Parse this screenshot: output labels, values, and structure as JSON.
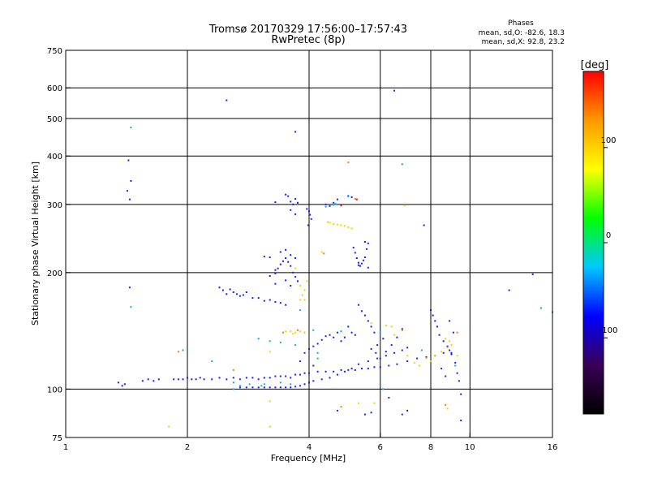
{
  "chart_data": {
    "type": "scatter",
    "title": "Tromsø 20170329 17:56:00–17:57:43",
    "subtitle": "RwPretec (8p)",
    "xlabel": "Frequency [MHz]",
    "ylabel": "Stationary phase Virtual Height [km]",
    "x_scale": "log",
    "y_scale": "log",
    "xlim": [
      1,
      16
    ],
    "ylim": [
      75,
      750
    ],
    "x_ticks": [
      1,
      2,
      4,
      6,
      8,
      10,
      16
    ],
    "y_ticks": [
      75,
      100,
      200,
      300,
      400,
      500,
      600,
      750
    ],
    "x_grid": [
      2,
      4,
      6,
      8,
      10
    ],
    "y_grid": [
      100,
      200,
      300,
      400,
      500,
      600
    ],
    "stats": {
      "heading": "Phases",
      "line1": "mean, sd,O: -82.6, 18.3",
      "line2": "mean, sd,X:  92.8, 23.2"
    },
    "colorbar": {
      "label": "[deg]",
      "range": [
        -180,
        180
      ],
      "ticks": [
        {
          "value": 100,
          "label": "100"
        },
        {
          "value": 0,
          "label": "0"
        },
        {
          "value": -100,
          "label": "-100"
        }
      ],
      "stops": [
        "#000000",
        "#3a0055",
        "#0000ff",
        "#00c8ff",
        "#00ff00",
        "#ffff00",
        "#ff9900",
        "#ff0000"
      ]
    },
    "series": [
      {
        "color": "#1a1aff",
        "points": [
          [
            1.85,
            106
          ],
          [
            1.9,
            106
          ],
          [
            1.95,
            106
          ],
          [
            2.0,
            107
          ],
          [
            2.05,
            106
          ],
          [
            2.1,
            106
          ],
          [
            2.15,
            107
          ],
          [
            2.2,
            106
          ],
          [
            2.3,
            106
          ],
          [
            2.4,
            107
          ],
          [
            2.5,
            106
          ],
          [
            2.6,
            107
          ],
          [
            2.7,
            106
          ],
          [
            2.8,
            107
          ],
          [
            2.9,
            107
          ],
          [
            3.0,
            106
          ],
          [
            3.1,
            107
          ],
          [
            3.2,
            107
          ],
          [
            3.3,
            108
          ],
          [
            3.4,
            108
          ],
          [
            3.5,
            108
          ],
          [
            3.6,
            107
          ],
          [
            3.7,
            109
          ],
          [
            3.8,
            109
          ],
          [
            3.9,
            110
          ],
          [
            4.0,
            110
          ],
          [
            4.2,
            111
          ],
          [
            4.4,
            111
          ],
          [
            4.6,
            111
          ],
          [
            4.8,
            112
          ],
          [
            5.0,
            112
          ],
          [
            5.2,
            112
          ],
          [
            5.4,
            113
          ],
          [
            5.6,
            113
          ],
          [
            5.8,
            114
          ],
          [
            6.0,
            114
          ],
          [
            6.3,
            115
          ],
          [
            6.6,
            116
          ],
          [
            7.0,
            118
          ],
          [
            7.4,
            120
          ],
          [
            7.8,
            121
          ],
          [
            8.2,
            122
          ],
          [
            8.6,
            124
          ],
          [
            9.0,
            124
          ],
          [
            2.7,
            101
          ],
          [
            2.8,
            101
          ],
          [
            2.9,
            101
          ],
          [
            3.0,
            101
          ],
          [
            3.1,
            101
          ],
          [
            3.2,
            101
          ],
          [
            3.3,
            101
          ],
          [
            3.4,
            101
          ],
          [
            3.5,
            101
          ],
          [
            3.6,
            101
          ],
          [
            3.7,
            101.5
          ],
          [
            3.8,
            102
          ],
          [
            3.9,
            103
          ],
          [
            4.0,
            104
          ],
          [
            4.1,
            105
          ],
          [
            4.3,
            106
          ],
          [
            4.5,
            107
          ],
          [
            4.7,
            109
          ],
          [
            4.9,
            111
          ],
          [
            5.1,
            113
          ],
          [
            5.3,
            116
          ],
          [
            5.6,
            118
          ],
          [
            5.9,
            120
          ],
          [
            6.2,
            122
          ],
          [
            6.5,
            124
          ],
          [
            6.8,
            126
          ],
          [
            7.0,
            128
          ],
          [
            3.9,
            124
          ],
          [
            4.0,
            127
          ],
          [
            4.1,
            129
          ],
          [
            4.2,
            131
          ],
          [
            4.3,
            134
          ],
          [
            4.4,
            137
          ],
          [
            4.5,
            138
          ],
          [
            4.6,
            136
          ],
          [
            4.7,
            140
          ],
          [
            4.8,
            133
          ],
          [
            4.9,
            136
          ],
          [
            5.0,
            145
          ],
          [
            5.1,
            140
          ],
          [
            5.2,
            138
          ],
          [
            2.4,
            183
          ],
          [
            2.45,
            180
          ],
          [
            2.5,
            176
          ],
          [
            2.55,
            181
          ],
          [
            2.6,
            178
          ],
          [
            2.65,
            176
          ],
          [
            2.7,
            174
          ],
          [
            2.75,
            175
          ],
          [
            2.8,
            178
          ],
          [
            2.9,
            172
          ],
          [
            3.0,
            172
          ],
          [
            3.1,
            169
          ],
          [
            3.2,
            170
          ],
          [
            3.3,
            168
          ],
          [
            3.4,
            167
          ],
          [
            3.5,
            165
          ],
          [
            3.2,
            196
          ],
          [
            3.3,
            199
          ],
          [
            3.35,
            205
          ],
          [
            3.4,
            210
          ],
          [
            3.45,
            214
          ],
          [
            3.5,
            218
          ],
          [
            3.55,
            213
          ],
          [
            3.6,
            208
          ],
          [
            3.65,
            200
          ],
          [
            3.7,
            195
          ],
          [
            3.75,
            190
          ],
          [
            3.3,
            187
          ],
          [
            3.5,
            191
          ],
          [
            3.6,
            185
          ],
          [
            3.1,
            220
          ],
          [
            3.2,
            219
          ],
          [
            3.3,
            203
          ],
          [
            3.7,
            218
          ],
          [
            3.4,
            226
          ],
          [
            3.5,
            229
          ],
          [
            3.6,
            222
          ],
          [
            3.55,
            315
          ],
          [
            3.6,
            305
          ],
          [
            3.65,
            300
          ],
          [
            3.7,
            310
          ],
          [
            3.75,
            303
          ],
          [
            3.6,
            290
          ],
          [
            3.7,
            283
          ],
          [
            3.5,
            318
          ],
          [
            3.95,
            292
          ],
          [
            4.0,
            288
          ],
          [
            4.02,
            282
          ],
          [
            4.05,
            275
          ],
          [
            3.98,
            265
          ],
          [
            4.4,
            300
          ],
          [
            4.5,
            297
          ],
          [
            4.6,
            303
          ],
          [
            4.7,
            309
          ],
          [
            5.0,
            315
          ],
          [
            5.1,
            313
          ],
          [
            5.15,
            232
          ],
          [
            5.2,
            225
          ],
          [
            5.25,
            218
          ],
          [
            5.3,
            212
          ],
          [
            5.35,
            208
          ],
          [
            5.4,
            211
          ],
          [
            5.45,
            215
          ],
          [
            5.5,
            219
          ],
          [
            5.55,
            230
          ],
          [
            5.5,
            240
          ],
          [
            5.6,
            238
          ],
          [
            5.6,
            206
          ],
          [
            5.3,
            209
          ],
          [
            5.3,
            165
          ],
          [
            5.4,
            159
          ],
          [
            5.5,
            155
          ],
          [
            5.6,
            150
          ],
          [
            5.7,
            145
          ],
          [
            5.8,
            140
          ],
          [
            5.9,
            130
          ],
          [
            5.7,
            127
          ],
          [
            5.85,
            124
          ],
          [
            6.0,
            120
          ],
          [
            6.2,
            125
          ],
          [
            6.4,
            130
          ],
          [
            6.6,
            136
          ],
          [
            6.8,
            143
          ],
          [
            6.1,
            135
          ],
          [
            8.0,
            160
          ],
          [
            8.1,
            155
          ],
          [
            8.2,
            150
          ],
          [
            8.3,
            145
          ],
          [
            8.4,
            138
          ],
          [
            8.6,
            133
          ],
          [
            8.8,
            129
          ],
          [
            8.9,
            126
          ],
          [
            9.0,
            123
          ],
          [
            9.2,
            117
          ],
          [
            9.3,
            110
          ],
          [
            9.4,
            105
          ],
          [
            8.5,
            113
          ],
          [
            8.7,
            108
          ],
          [
            9.1,
            140
          ],
          [
            8.9,
            150
          ],
          [
            1.35,
            104
          ],
          [
            1.38,
            102
          ],
          [
            1.4,
            103
          ],
          [
            1.55,
            105
          ],
          [
            1.6,
            106
          ],
          [
            1.65,
            105
          ],
          [
            1.7,
            106
          ],
          [
            1.43,
            390
          ],
          [
            1.42,
            325
          ],
          [
            1.45,
            345
          ],
          [
            1.44,
            309
          ],
          [
            1.44,
            183
          ],
          [
            2.5,
            557
          ],
          [
            3.7,
            462
          ],
          [
            3.3,
            304
          ],
          [
            4.7,
            88
          ],
          [
            5.5,
            86
          ],
          [
            5.7,
            87
          ],
          [
            6.3,
            95
          ],
          [
            6.8,
            86
          ],
          [
            7.0,
            88
          ],
          [
            9.5,
            83
          ],
          [
            12.5,
            180
          ],
          [
            14.3,
            198
          ],
          [
            7.7,
            265
          ],
          [
            3.8,
            118
          ],
          [
            4.1,
            115
          ],
          [
            6.5,
            590
          ],
          [
            9.5,
            97
          ]
        ]
      },
      {
        "color": "#00aeef",
        "points": [
          [
            1.45,
            474
          ],
          [
            1.45,
            163
          ],
          [
            2.6,
            104
          ],
          [
            2.7,
            102
          ],
          [
            2.85,
            103
          ],
          [
            3.1,
            103
          ],
          [
            3.4,
            104
          ],
          [
            3.6,
            103
          ],
          [
            4.6,
            299
          ],
          [
            4.65,
            301
          ],
          [
            3.0,
            135
          ],
          [
            3.2,
            133
          ],
          [
            3.4,
            132
          ],
          [
            3.7,
            130
          ],
          [
            3.9,
            140
          ],
          [
            4.1,
            142
          ],
          [
            2.3,
            118
          ],
          [
            3.8,
            160
          ],
          [
            4.2,
            124
          ],
          [
            6.0,
            140
          ],
          [
            7.6,
            126
          ],
          [
            15.0,
            162
          ],
          [
            9.2,
            115
          ],
          [
            4.4,
            296
          ],
          [
            5.0,
            316
          ],
          [
            2.6,
            100
          ],
          [
            3.05,
            102
          ],
          [
            4.8,
            141
          ],
          [
            6.1,
            100
          ]
        ]
      },
      {
        "color": "#ffcc00",
        "points": [
          [
            3.7,
            140
          ],
          [
            3.8,
            141
          ],
          [
            3.9,
            140
          ],
          [
            3.45,
            140
          ],
          [
            3.5,
            141
          ],
          [
            3.6,
            141
          ],
          [
            3.65,
            139
          ],
          [
            3.8,
            185
          ],
          [
            3.9,
            180
          ],
          [
            3.85,
            175
          ],
          [
            3.9,
            170
          ],
          [
            3.8,
            170
          ],
          [
            3.95,
            190
          ],
          [
            3.7,
            205
          ],
          [
            4.45,
            270
          ],
          [
            4.5,
            269
          ],
          [
            4.6,
            267
          ],
          [
            4.7,
            266
          ],
          [
            4.8,
            265
          ],
          [
            4.9,
            264
          ],
          [
            5.0,
            262
          ],
          [
            5.1,
            260
          ],
          [
            7.8,
            120
          ],
          [
            8.0,
            118
          ],
          [
            8.2,
            122
          ],
          [
            8.5,
            125
          ],
          [
            8.8,
            128
          ],
          [
            9.0,
            130
          ],
          [
            9.3,
            122
          ],
          [
            8.7,
            135
          ],
          [
            8.9,
            133
          ],
          [
            7.3,
            117
          ],
          [
            7.5,
            115
          ],
          [
            6.2,
            146
          ],
          [
            6.4,
            145
          ],
          [
            5.3,
            92
          ],
          [
            5.8,
            92
          ],
          [
            3.2,
            93
          ],
          [
            3.2,
            125
          ],
          [
            6.9,
            298
          ],
          [
            4.3,
            226
          ],
          [
            3.2,
            80
          ],
          [
            1.8,
            80
          ],
          [
            8.8,
            89
          ],
          [
            5.7,
            148
          ],
          [
            6.5,
            138
          ],
          [
            7.0,
            122
          ]
        ]
      },
      {
        "color": "#ff7a00",
        "points": [
          [
            4.35,
            224
          ],
          [
            5.0,
            385
          ],
          [
            3.45,
            140
          ],
          [
            3.75,
            142
          ],
          [
            6.8,
            142
          ],
          [
            2.6,
            112
          ],
          [
            1.9,
            125
          ],
          [
            9.3,
            140
          ],
          [
            4.8,
            90
          ],
          [
            8.7,
            91
          ],
          [
            5.2,
            310
          ]
        ]
      },
      {
        "color": "#ff0000",
        "points": [
          [
            4.8,
            298
          ],
          [
            5.25,
            309
          ]
        ]
      },
      {
        "color": "#00cc33",
        "points": [
          [
            6.8,
            381
          ],
          [
            4.2,
            120
          ],
          [
            1.95,
            126
          ],
          [
            16.0,
            158
          ]
        ]
      }
    ]
  }
}
